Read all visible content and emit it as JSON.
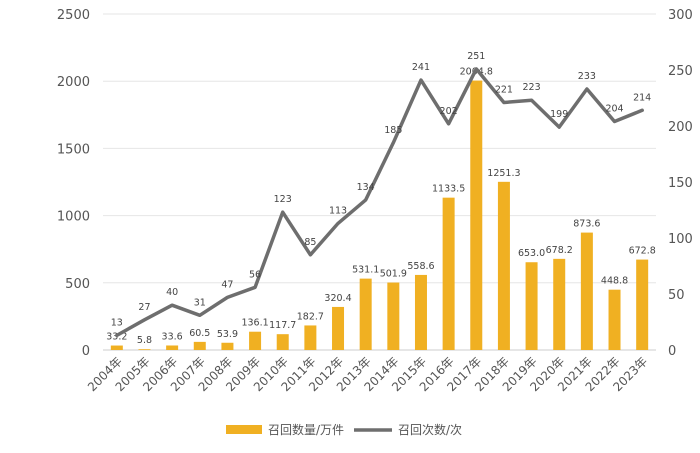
{
  "chart_data": {
    "type": "bar+line",
    "categories": [
      "2004年",
      "2005年",
      "2006年",
      "2007年",
      "2008年",
      "2009年",
      "2010年",
      "2011年",
      "2012年",
      "2013年",
      "2014年",
      "2015年",
      "2016年",
      "2017年",
      "2018年",
      "2019年",
      "2020年",
      "2021年",
      "2022年",
      "2023年"
    ],
    "series": [
      {
        "name": "召回数量/万件",
        "type": "bar",
        "axis": "left",
        "color": "#F0B022",
        "values": [
          33.2,
          5.8,
          33.6,
          60.5,
          53.9,
          136.1,
          117.7,
          182.7,
          320.4,
          531.1,
          501.9,
          558.6,
          1133.5,
          2004.8,
          1251.3,
          653.0,
          678.2,
          873.6,
          448.8,
          672.8
        ],
        "labels": [
          "33.2",
          "5.8",
          "33.6",
          "60.5",
          "53.9",
          "136.1",
          "117.7",
          "182.7",
          "320.4",
          "531.1",
          "501.9",
          "558.6",
          "1133.5",
          "2004.8",
          "1251.3",
          "653.0",
          "678.2",
          "873.6",
          "448.8",
          "672.8"
        ]
      },
      {
        "name": "召回次数/次",
        "type": "line",
        "axis": "right",
        "color": "#6E6E6E",
        "values": [
          13,
          27,
          40,
          31,
          47,
          56,
          123,
          85,
          113,
          134,
          185,
          241,
          202,
          251,
          221,
          223,
          199,
          233,
          204,
          214
        ],
        "labels": [
          "13",
          "27",
          "40",
          "31",
          "47",
          "56",
          "123",
          "85",
          "113",
          "134",
          "185",
          "241",
          "202",
          "251",
          "221",
          "223",
          "199",
          "233",
          "204",
          "214"
        ]
      }
    ],
    "y_left": {
      "min": 0,
      "max": 2500,
      "ticks": [
        "0",
        "500",
        "1000",
        "1500",
        "2000",
        "2500"
      ]
    },
    "y_right": {
      "min": 0,
      "max": 300,
      "ticks": [
        "0",
        "50",
        "100",
        "150",
        "200",
        "250",
        "300"
      ]
    },
    "grid": true,
    "legend_position": "bottom"
  }
}
